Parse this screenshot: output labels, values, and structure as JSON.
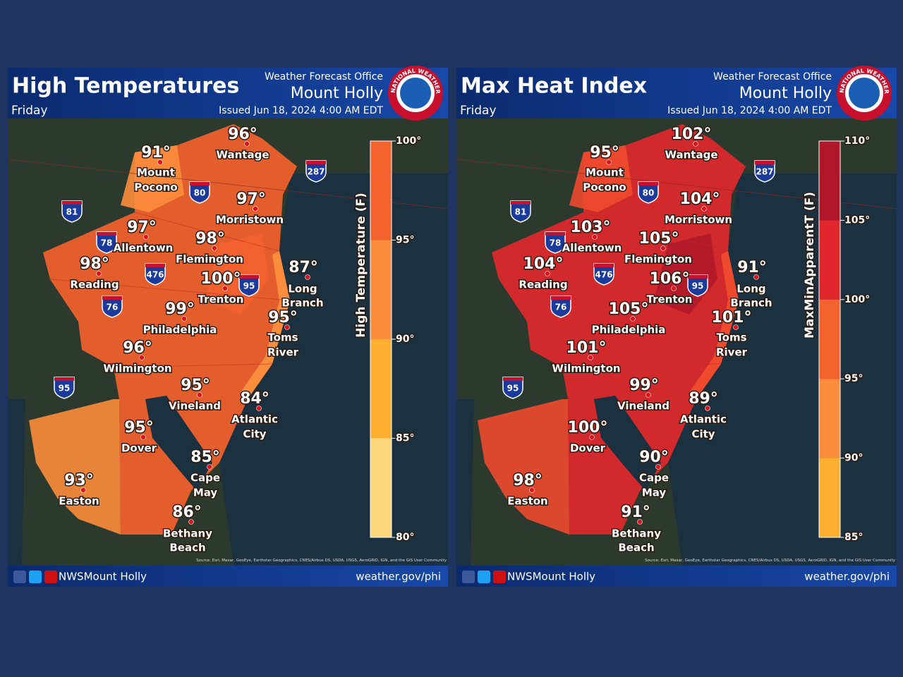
{
  "panels": [
    {
      "title": "High Temperatures",
      "day": "Friday",
      "office": "Weather Forecast Office",
      "location": "Mount Holly",
      "issued": "Issued Jun 18, 2024 4:00 AM EDT",
      "logo": "NATIONAL WEATHER SERVICE",
      "legend": {
        "label": "High Temperature (F)",
        "ticks": [
          "100°",
          "95°",
          "90°",
          "85°",
          "80°"
        ]
      },
      "cities": [
        {
          "temp": "96°",
          "name": [
            "Wantage"
          ]
        },
        {
          "temp": "91°",
          "name": [
            "Mount",
            "Pocono"
          ]
        },
        {
          "temp": "97°",
          "name": [
            "Morristown"
          ]
        },
        {
          "temp": "97°",
          "name": [
            "Allentown"
          ]
        },
        {
          "temp": "98°",
          "name": [
            "Flemington"
          ]
        },
        {
          "temp": "98°",
          "name": [
            "Reading"
          ]
        },
        {
          "temp": "100°",
          "name": [
            "Trenton"
          ]
        },
        {
          "temp": "87°",
          "name": [
            "Long",
            "Branch"
          ]
        },
        {
          "temp": "99°",
          "name": [
            "Philadelphia"
          ]
        },
        {
          "temp": "95°",
          "name": [
            "Toms",
            "River"
          ]
        },
        {
          "temp": "96°",
          "name": [
            "Wilmington"
          ]
        },
        {
          "temp": "95°",
          "name": [
            "Vineland"
          ]
        },
        {
          "temp": "84°",
          "name": [
            "Atlantic",
            "City"
          ]
        },
        {
          "temp": "95°",
          "name": [
            "Dover"
          ]
        },
        {
          "temp": "85°",
          "name": [
            "Cape",
            "May"
          ]
        },
        {
          "temp": "93°",
          "name": [
            "Easton"
          ]
        },
        {
          "temp": "86°",
          "name": [
            "Bethany",
            "Beach"
          ]
        }
      ],
      "shields": [
        "287",
        "80",
        "81",
        "78",
        "476",
        "95",
        "76",
        "95"
      ],
      "source": "Source: Esri, Maxar, GeoEye, Earthstar Geographics, CNES/Airbus DS, USDA, USGS, AeroGRID, IGN, and the GIS User Community",
      "footer": {
        "handle": "NWSMount Holly",
        "url": "weather.gov/phi"
      }
    },
    {
      "title": "Max Heat Index",
      "day": "Friday",
      "office": "Weather Forecast Office",
      "location": "Mount Holly",
      "issued": "Issued Jun 18, 2024 4:00 AM EDT",
      "logo": "NATIONAL WEATHER SERVICE",
      "legend": {
        "label": "MaxMinApparentT (F)",
        "ticks": [
          "110°",
          "105°",
          "100°",
          "95°",
          "90°",
          "85°"
        ]
      },
      "cities": [
        {
          "temp": "102°",
          "name": [
            "Wantage"
          ]
        },
        {
          "temp": "95°",
          "name": [
            "Mount",
            "Pocono"
          ]
        },
        {
          "temp": "104°",
          "name": [
            "Morristown"
          ]
        },
        {
          "temp": "103°",
          "name": [
            "Allentown"
          ]
        },
        {
          "temp": "105°",
          "name": [
            "Flemington"
          ]
        },
        {
          "temp": "104°",
          "name": [
            "Reading"
          ]
        },
        {
          "temp": "106°",
          "name": [
            "Trenton"
          ]
        },
        {
          "temp": "91°",
          "name": [
            "Long",
            "Branch"
          ]
        },
        {
          "temp": "105°",
          "name": [
            "Philadelphia"
          ]
        },
        {
          "temp": "101°",
          "name": [
            "Toms",
            "River"
          ]
        },
        {
          "temp": "101°",
          "name": [
            "Wilmington"
          ]
        },
        {
          "temp": "99°",
          "name": [
            "Vineland"
          ]
        },
        {
          "temp": "89°",
          "name": [
            "Atlantic",
            "City"
          ]
        },
        {
          "temp": "100°",
          "name": [
            "Dover"
          ]
        },
        {
          "temp": "90°",
          "name": [
            "Cape",
            "May"
          ]
        },
        {
          "temp": "98°",
          "name": [
            "Easton"
          ]
        },
        {
          "temp": "91°",
          "name": [
            "Bethany",
            "Beach"
          ]
        }
      ],
      "shields": [
        "287",
        "80",
        "81",
        "78",
        "476",
        "95",
        "76",
        "95"
      ],
      "source": "Source: Esri, Maxar, GeoEye, Earthstar Geographics, CNES/Airbus DS, USDA, USGS, AeroGRID, IGN, and the GIS User Community",
      "footer": {
        "handle": "NWSMount Holly",
        "url": "weather.gov/phi"
      }
    }
  ]
}
